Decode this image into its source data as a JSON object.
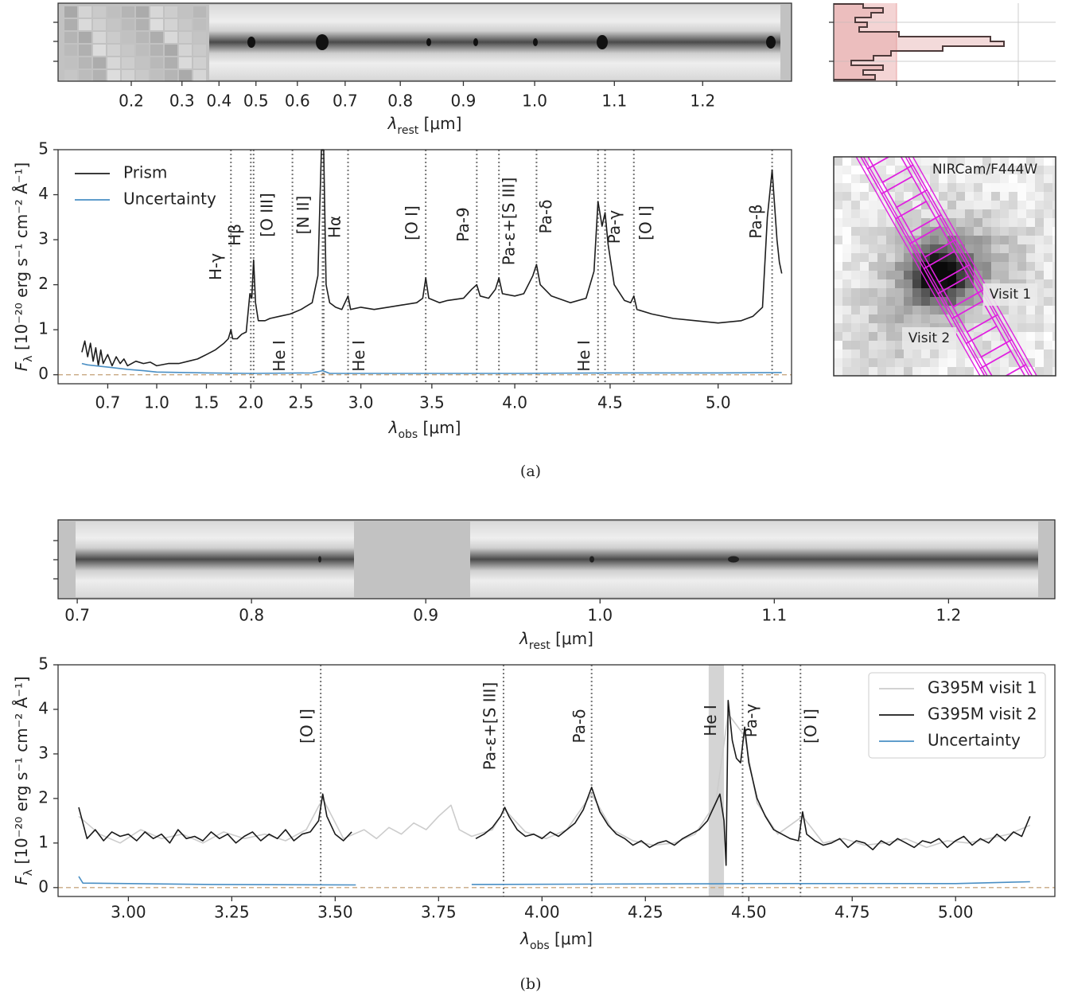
{
  "chart_data": [
    {
      "type": "strip",
      "xscale": "prism",
      "xlim": [
        0.129,
        1.292
      ],
      "xticks": [
        0.2,
        0.3,
        0.4,
        0.5,
        0.6,
        0.7,
        0.8,
        0.9,
        {
          "value": 1,
          "label": "1.0"
        },
        1.1,
        1.2
      ],
      "xlabel": {
        "main": "λ",
        "sub": "rest",
        "rest": " [μm]"
      }
    },
    {
      "type": "line",
      "xscale": "prism",
      "xlim": [
        0.53,
        5.31
      ],
      "ylim": [
        -0.2,
        5
      ],
      "xticks": [
        0.7,
        {
          "value": 1,
          "label": "1.0"
        },
        1.5,
        {
          "value": 2,
          "label": "2.0"
        },
        2.5,
        {
          "value": 3,
          "label": "3.0"
        },
        3.5,
        {
          "value": 4,
          "label": "4.0"
        },
        4.5,
        {
          "value": 5,
          "label": "5.0"
        }
      ],
      "yticks": [
        0,
        1,
        2,
        3,
        4,
        5
      ],
      "xlabel": {
        "main": "λ",
        "sub": "obs",
        "rest": " [μm]"
      },
      "ylabel": {
        "main": "F",
        "sub": "λ",
        "rest": " [10⁻²⁰ erg s⁻¹ cm⁻² Å⁻¹]"
      },
      "zero_line": true,
      "legend": "upper left",
      "legend_frame": false,
      "series": [
        {
          "name": "Prism",
          "color": "#1e1e1e",
          "x": [
            0.6,
            0.61,
            0.62,
            0.63,
            0.64,
            0.65,
            0.66,
            0.67,
            0.68,
            0.7,
            0.72,
            0.74,
            0.76,
            0.78,
            0.8,
            0.85,
            0.9,
            0.95,
            1.0,
            1.1,
            1.2,
            1.3,
            1.4,
            1.5,
            1.6,
            1.7,
            1.75,
            1.78,
            1.8,
            1.85,
            1.9,
            1.95,
            1.99,
            2.01,
            2.03,
            2.05,
            2.08,
            2.15,
            2.2,
            2.3,
            2.4,
            2.5,
            2.6,
            2.65,
            2.68,
            2.7,
            2.72,
            2.75,
            2.8,
            2.85,
            2.9,
            2.92,
            3.0,
            3.1,
            3.2,
            3.3,
            3.4,
            3.44,
            3.46,
            3.48,
            3.55,
            3.6,
            3.7,
            3.75,
            3.78,
            3.8,
            3.85,
            3.89,
            3.91,
            3.93,
            4.0,
            4.05,
            4.1,
            4.12,
            4.14,
            4.2,
            4.3,
            4.38,
            4.42,
            4.44,
            4.46,
            4.475,
            4.49,
            4.52,
            4.57,
            4.6,
            4.615,
            4.63,
            4.7,
            4.8,
            4.9,
            5.0,
            5.1,
            5.15,
            5.19,
            5.21,
            5.23,
            5.25,
            5.26,
            5.27
          ],
          "values": [
            0.5,
            0.75,
            0.4,
            0.7,
            0.3,
            0.6,
            0.2,
            0.55,
            0.25,
            0.45,
            0.2,
            0.4,
            0.25,
            0.35,
            0.2,
            0.3,
            0.25,
            0.28,
            0.2,
            0.25,
            0.25,
            0.3,
            0.35,
            0.45,
            0.55,
            0.7,
            0.8,
            1.0,
            0.8,
            0.8,
            0.9,
            0.95,
            1.8,
            1.7,
            2.55,
            1.6,
            1.2,
            1.2,
            1.25,
            1.3,
            1.35,
            1.45,
            1.6,
            2.2,
            5.0,
            5.0,
            2.0,
            1.6,
            1.5,
            1.45,
            1.75,
            1.45,
            1.5,
            1.45,
            1.5,
            1.55,
            1.6,
            1.7,
            2.15,
            1.7,
            1.6,
            1.65,
            1.7,
            1.9,
            2.0,
            1.75,
            1.7,
            1.9,
            2.15,
            1.8,
            1.75,
            1.8,
            2.2,
            2.45,
            2.0,
            1.75,
            1.6,
            1.7,
            2.3,
            3.85,
            3.3,
            3.6,
            2.9,
            2.0,
            1.65,
            1.6,
            1.75,
            1.45,
            1.35,
            1.25,
            1.2,
            1.15,
            1.2,
            1.3,
            1.5,
            3.5,
            4.55,
            3.0,
            2.5,
            2.25
          ]
        },
        {
          "name": "Uncertainty",
          "color": "#4a8fc4",
          "x": [
            0.6,
            0.62,
            0.65,
            0.7,
            0.8,
            0.9,
            1.0,
            1.5,
            2.0,
            2.6,
            2.69,
            2.75,
            3.5,
            4.0,
            4.5,
            5.0,
            5.27
          ],
          "values": [
            0.25,
            0.22,
            0.2,
            0.17,
            0.12,
            0.09,
            0.06,
            0.04,
            0.03,
            0.04,
            0.09,
            0.03,
            0.03,
            0.03,
            0.04,
            0.04,
            0.05
          ]
        }
      ],
      "lines": [
        {
          "x": 1.78,
          "label": "H-γ"
        },
        {
          "x": 2.0,
          "label": "Hβ"
        },
        {
          "x": 2.03,
          "label": "[O III]"
        },
        {
          "x": 2.42,
          "label": "He I"
        },
        {
          "x": 2.69,
          "label": "[N II]"
        },
        {
          "x": 2.7,
          "label": "Hα"
        },
        {
          "x": 2.9,
          "label": "He I"
        },
        {
          "x": 3.46,
          "label": "[O I]"
        },
        {
          "x": 3.78,
          "label": "Pa-9"
        },
        {
          "x": 3.91,
          "label": "Pa-ε+[S III]"
        },
        {
          "x": 4.12,
          "label": "Pa-δ"
        },
        {
          "x": 4.44,
          "label": "He I"
        },
        {
          "x": 4.475,
          "label": "Pa-γ"
        },
        {
          "x": 4.615,
          "label": "[O I]"
        },
        {
          "x": 5.23,
          "label": "Pa-β"
        }
      ]
    },
    {
      "type": "strip",
      "xlim": [
        0.689,
        1.261
      ],
      "xticks": [
        0.7,
        0.8,
        0.9,
        {
          "value": 1,
          "label": "1.0"
        },
        1.1,
        1.2
      ],
      "xlabel": {
        "main": "λ",
        "sub": "rest",
        "rest": " [μm]"
      }
    },
    {
      "type": "line",
      "xlim": [
        2.83,
        5.24
      ],
      "ylim": [
        -0.2,
        5
      ],
      "xticks": [
        {
          "value": 3,
          "label": "3.00"
        },
        3.25,
        {
          "value": 3.5,
          "label": "3.50"
        },
        3.75,
        {
          "value": 4,
          "label": "4.00"
        },
        4.25,
        {
          "value": 4.5,
          "label": "4.50"
        },
        4.75,
        {
          "value": 5,
          "label": "5.00"
        }
      ],
      "yticks": [
        0,
        1,
        2,
        3,
        4,
        5
      ],
      "xlabel": {
        "main": "λ",
        "sub": "obs",
        "rest": " [μm]"
      },
      "ylabel": {
        "main": "F",
        "sub": "λ",
        "rest": " [10⁻²⁰ erg s⁻¹ cm⁻² Å⁻¹]"
      },
      "zero_line": true,
      "legend": "upper right",
      "legend_frame": true,
      "series": [
        {
          "name": "G395M visit 1",
          "color": "#cccccc",
          "x": [
            2.88,
            2.93,
            2.98,
            3.03,
            3.08,
            3.13,
            3.18,
            3.23,
            3.28,
            3.33,
            3.38,
            3.43,
            3.47,
            3.52,
            3.57,
            3.6,
            3.63,
            3.66,
            3.69,
            3.72,
            3.75,
            3.78,
            3.8,
            3.83,
            3.88,
            3.91,
            3.96,
            4.01,
            4.06,
            4.12,
            4.17,
            4.22,
            4.27,
            4.32,
            4.37,
            4.42,
            4.45,
            4.49,
            4.52,
            4.57,
            4.63,
            4.68,
            4.73,
            4.78,
            4.83,
            4.88,
            4.93,
            4.98,
            5.03,
            5.08,
            5.13,
            5.18
          ],
          "values": [
            1.6,
            1.2,
            1.0,
            1.3,
            1.1,
            1.2,
            1.0,
            1.25,
            1.1,
            1.2,
            1.05,
            1.3,
            2.0,
            1.1,
            1.3,
            1.1,
            1.35,
            1.2,
            1.45,
            1.3,
            1.6,
            1.85,
            1.3,
            1.15,
            1.3,
            1.75,
            1.25,
            1.1,
            1.3,
            2.1,
            1.3,
            1.05,
            0.95,
            1.0,
            1.2,
            1.9,
            3.9,
            3.4,
            1.9,
            1.2,
            1.6,
            1.0,
            1.1,
            0.95,
            1.0,
            1.1,
            0.9,
            1.05,
            1.0,
            1.1,
            1.2,
            1.4
          ]
        },
        {
          "name": "G395M visit 2",
          "color": "#1a1a1a",
          "x": [
            2.88,
            2.9,
            2.92,
            2.94,
            2.96,
            2.98,
            3.0,
            3.02,
            3.04,
            3.06,
            3.08,
            3.1,
            3.12,
            3.14,
            3.16,
            3.18,
            3.2,
            3.22,
            3.24,
            3.26,
            3.28,
            3.3,
            3.32,
            3.34,
            3.36,
            3.38,
            3.4,
            3.42,
            3.44,
            3.46,
            3.47,
            3.48,
            3.5,
            3.52,
            3.54,
            3.7,
            3.84,
            3.86,
            3.88,
            3.9,
            3.91,
            3.92,
            3.94,
            3.96,
            3.98,
            4.0,
            4.02,
            4.04,
            4.06,
            4.08,
            4.1,
            4.12,
            4.14,
            4.16,
            4.18,
            4.2,
            4.22,
            4.24,
            4.26,
            4.28,
            4.3,
            4.32,
            4.34,
            4.36,
            4.38,
            4.4,
            4.42,
            4.43,
            4.44,
            4.445,
            4.45,
            4.46,
            4.47,
            4.48,
            4.49,
            4.5,
            4.52,
            4.54,
            4.56,
            4.58,
            4.6,
            4.62,
            4.63,
            4.64,
            4.66,
            4.68,
            4.7,
            4.72,
            4.74,
            4.76,
            4.78,
            4.8,
            4.82,
            4.84,
            4.86,
            4.88,
            4.9,
            4.92,
            4.94,
            4.96,
            4.98,
            5.0,
            5.02,
            5.04,
            5.06,
            5.08,
            5.1,
            5.12,
            5.14,
            5.16,
            5.18
          ],
          "values": [
            1.8,
            1.1,
            1.3,
            1.05,
            1.25,
            1.15,
            1.2,
            1.05,
            1.25,
            1.1,
            1.2,
            1.0,
            1.3,
            1.1,
            1.15,
            1.05,
            1.25,
            1.1,
            1.2,
            1.0,
            1.15,
            1.25,
            1.05,
            1.2,
            1.1,
            1.3,
            1.05,
            1.2,
            1.25,
            1.5,
            2.1,
            1.6,
            1.2,
            1.05,
            1.25,
            null,
            1.1,
            1.2,
            1.35,
            1.6,
            1.8,
            1.6,
            1.3,
            1.15,
            1.2,
            1.1,
            1.25,
            1.15,
            1.3,
            1.45,
            1.75,
            2.25,
            1.7,
            1.4,
            1.2,
            1.1,
            0.95,
            1.05,
            0.9,
            1.0,
            1.05,
            0.95,
            1.1,
            1.2,
            1.3,
            1.5,
            1.9,
            2.1,
            1.5,
            0.5,
            4.2,
            3.3,
            2.9,
            2.8,
            3.6,
            2.8,
            2.0,
            1.6,
            1.3,
            1.2,
            1.1,
            1.05,
            1.7,
            1.2,
            1.05,
            0.95,
            1.0,
            1.1,
            0.9,
            1.05,
            1.0,
            0.85,
            1.05,
            0.95,
            1.1,
            1.0,
            0.9,
            1.05,
            1.0,
            1.1,
            0.9,
            1.05,
            1.15,
            0.95,
            1.1,
            1.0,
            1.2,
            1.05,
            1.25,
            1.15,
            1.6
          ]
        },
        {
          "name": "Uncertainty",
          "color": "#4a8fc4",
          "x": [
            2.88,
            2.89,
            3.2,
            3.55,
            3.7,
            3.83,
            4.2,
            4.6,
            5.0,
            5.18
          ],
          "values": [
            0.25,
            0.1,
            0.07,
            0.06,
            null,
            0.07,
            0.08,
            0.09,
            0.09,
            0.13
          ]
        }
      ],
      "lines": [
        {
          "x": 3.465,
          "label": "[O I]"
        },
        {
          "x": 3.907,
          "label": "Pa-ε+[S III]"
        },
        {
          "x": 4.12,
          "label": "Pa-δ"
        },
        {
          "x": 4.485,
          "label": "Pa-γ"
        },
        {
          "x": 4.625,
          "label": "[O I]"
        }
      ],
      "bands": [
        {
          "x": [
            4.403,
            4.44
          ],
          "label": "He I"
        }
      ]
    }
  ],
  "cutout": {
    "title": "NIRCam/F444W",
    "labels": [
      "Visit 1",
      "Visit 2"
    ]
  },
  "captions": [
    "(a)",
    "(b)"
  ]
}
